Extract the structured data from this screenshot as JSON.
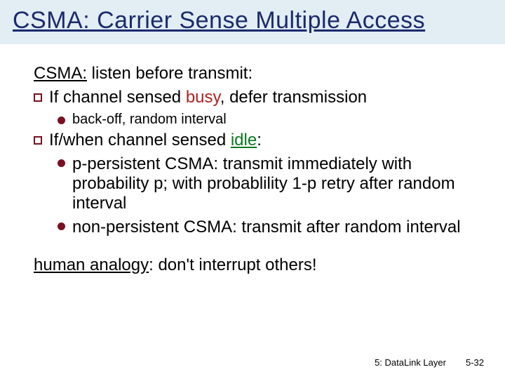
{
  "colors": {
    "title_bg": "#e2edf4",
    "title_fg": "#1b2a6b",
    "body_fg": "#000000",
    "busy": "#b2221f",
    "idle": "#0a7a1f",
    "bullet_border": "#7a1020",
    "bullet_fill_sq": "#ffffff",
    "bullet_fill_circ": "#7a1020"
  },
  "fonts": {
    "title_size": 34,
    "body_size": 24,
    "sub_size": 20,
    "subsub_size": 24,
    "analogy_size": 24,
    "footer_size": 13
  },
  "shapes": {
    "sq_size": 12,
    "sq_border": 2,
    "circ_size": 11,
    "circ_border": 2
  },
  "title": "CSMA: Carrier Sense Multiple Access",
  "intro": {
    "lead": "CSMA:",
    "rest": " listen before transmit:"
  },
  "b1": {
    "pre": "If channel sensed ",
    "key": "busy",
    "post": ", defer transmission"
  },
  "b1a": "back-off, random interval",
  "b2": {
    "pre": "If/when channel sensed ",
    "key": "idle",
    "post": ":"
  },
  "b2a": "p-persistent CSMA: transmit immediately with probability p; with probablility 1-p retry after random interval",
  "b2b": "non-persistent CSMA: transmit after random interval",
  "analogy": {
    "lead": "human analogy",
    "rest": ": don't interrupt others!"
  },
  "footer": {
    "chapter": "5: DataLink Layer",
    "page": "5-32"
  }
}
